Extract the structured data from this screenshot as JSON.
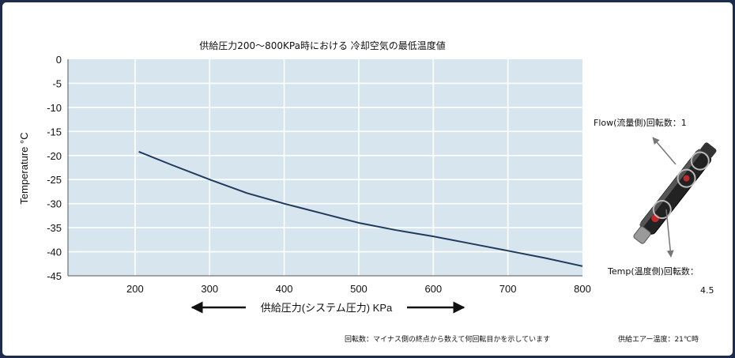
{
  "chart_data": {
    "type": "line",
    "title": "供給圧力200～800KPa時における 冷却空気の最低温度値",
    "xlabel": "供給圧力(システム圧力) KPa",
    "ylabel": "Temperature °C",
    "xlim": [
      110,
      800
    ],
    "ylim": [
      -45,
      0
    ],
    "x_ticks": [
      200,
      300,
      400,
      500,
      600,
      700,
      800
    ],
    "y_ticks": [
      0,
      -5,
      -10,
      -15,
      -20,
      -25,
      -30,
      -35,
      -40,
      -45
    ],
    "grid": true,
    "series": [
      {
        "x": [
          205,
          250,
          300,
          350,
          400,
          450,
          500,
          550,
          600,
          650,
          700,
          750,
          800
        ],
        "y": [
          -19.2,
          -22.0,
          -25.0,
          -27.8,
          -30.0,
          -32.0,
          -34.0,
          -35.5,
          -36.8,
          -38.3,
          -39.8,
          -41.3,
          -43.0
        ]
      }
    ],
    "annotations": {
      "flow": "Flow(流量側)回転数：1",
      "temp_label": "Temp(温度側)回転数：",
      "temp_value": "4.5",
      "note": "回転数：マイナス側の終点から数えて何回転目かを示しています",
      "air_temp": "供給エアー温度：21℃時"
    }
  },
  "colors": {
    "plot_bg": "#d7e5ef",
    "line": "#1f3a5c",
    "border": "#1d2b4c"
  }
}
